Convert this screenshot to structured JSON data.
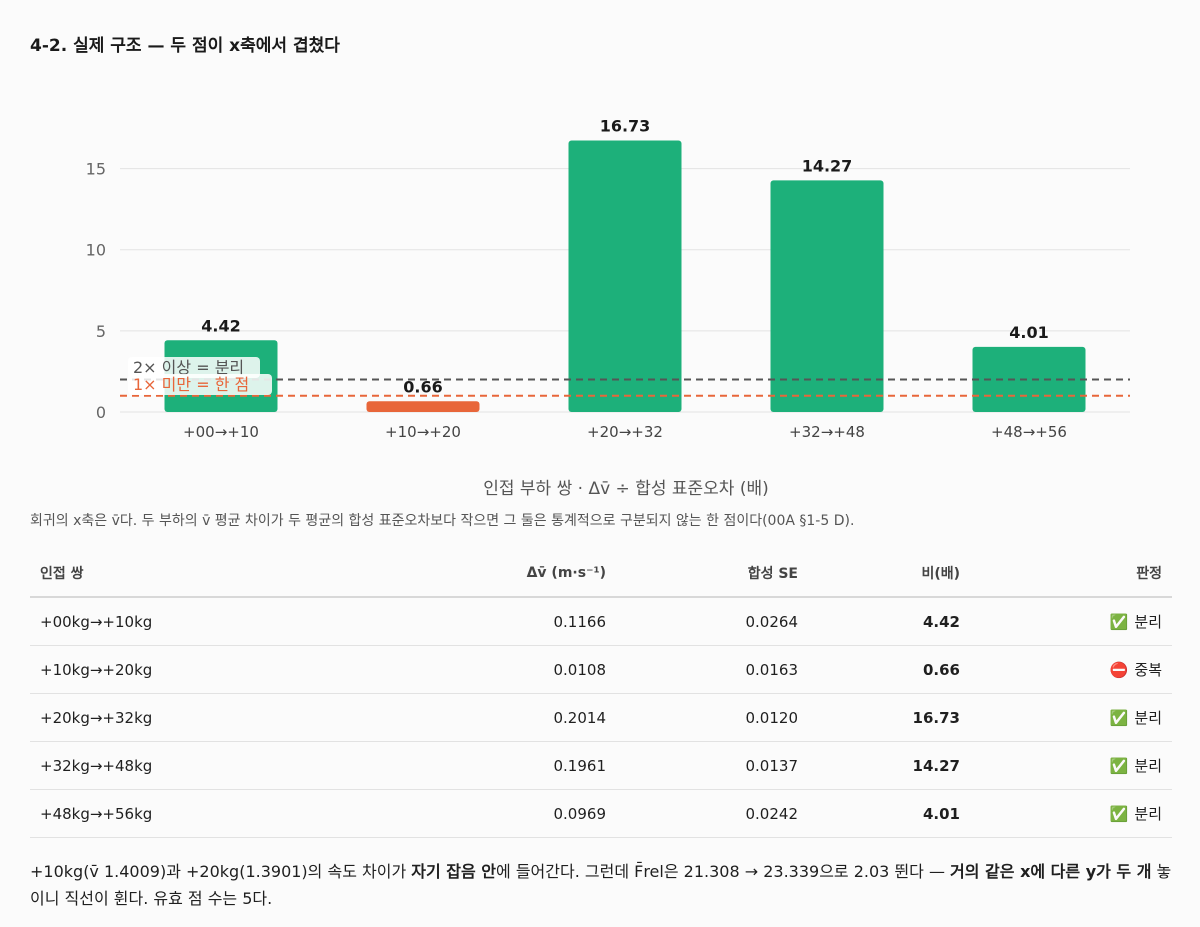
{
  "page_title": "4-2. 실제 구조 — 두 점이 x축에서 겹쳤다",
  "chart_data": {
    "type": "bar",
    "categories": [
      "+00→+10",
      "+10→+20",
      "+20→+32",
      "+32→+48",
      "+48→+56"
    ],
    "values": [
      4.42,
      0.66,
      16.73,
      14.27,
      4.01
    ],
    "value_labels": [
      "4.42",
      "0.66",
      "16.73",
      "14.27",
      "4.01"
    ],
    "bar_colors": [
      "#1db07a",
      "#e8663a",
      "#1db07a",
      "#1db07a",
      "#1db07a"
    ],
    "xlabel": "인접 부하 쌍 · Δv̄ ÷ 합성 표준오차 (배)",
    "ylim": [
      0,
      17.5
    ],
    "yticks": [
      0,
      5,
      10,
      15
    ],
    "grid": true,
    "reference_lines": [
      {
        "value": 2,
        "label": "2× 이상 = 분리",
        "color": "#555555"
      },
      {
        "value": 1,
        "label": "1× 미만 = 한 점",
        "color": "#e8663a"
      }
    ]
  },
  "caption": "회귀의 x축은 v̄다. 두 부하의 v̄ 평균 차이가 두 평균의 합성 표준오차보다 작으면 그 둘은 통계적으로 구분되지 않는 한 점이다(00A §1-5 D).",
  "table": {
    "headers": [
      "인접 쌍",
      "Δv̄ (m·s⁻¹)",
      "합성 SE",
      "비(배)",
      "판정"
    ],
    "rows": [
      {
        "pair": "+00kg→+10kg",
        "dv": "0.1166",
        "se": "0.0264",
        "ratio": "4.42",
        "icon": "✅",
        "verdict": "분리",
        "icon_name": "check-icon"
      },
      {
        "pair": "+10kg→+20kg",
        "dv": "0.0108",
        "se": "0.0163",
        "ratio": "0.66",
        "icon": "⛔",
        "verdict": "중복",
        "icon_name": "no-entry-icon"
      },
      {
        "pair": "+20kg→+32kg",
        "dv": "0.2014",
        "se": "0.0120",
        "ratio": "16.73",
        "icon": "✅",
        "verdict": "분리",
        "icon_name": "check-icon"
      },
      {
        "pair": "+32kg→+48kg",
        "dv": "0.1961",
        "se": "0.0137",
        "ratio": "14.27",
        "icon": "✅",
        "verdict": "분리",
        "icon_name": "check-icon"
      },
      {
        "pair": "+48kg→+56kg",
        "dv": "0.0969",
        "se": "0.0242",
        "ratio": "4.01",
        "icon": "✅",
        "verdict": "분리",
        "icon_name": "check-icon"
      }
    ]
  },
  "footnote": {
    "part1": "+10kg(v̄ 1.4009)과 +20kg(1.3901)의 속도 차이가 ",
    "bold1": "자기 잡음 안",
    "part2": "에 들어간다. 그런데 F̄rel은 21.308 → 23.339으로 2.03 뛴다 — ",
    "bold2": "거의 같은 x에 다른 y가 두 개",
    "part3": " 놓이니 직선이 휜다. 유효 점 수는 5다."
  }
}
